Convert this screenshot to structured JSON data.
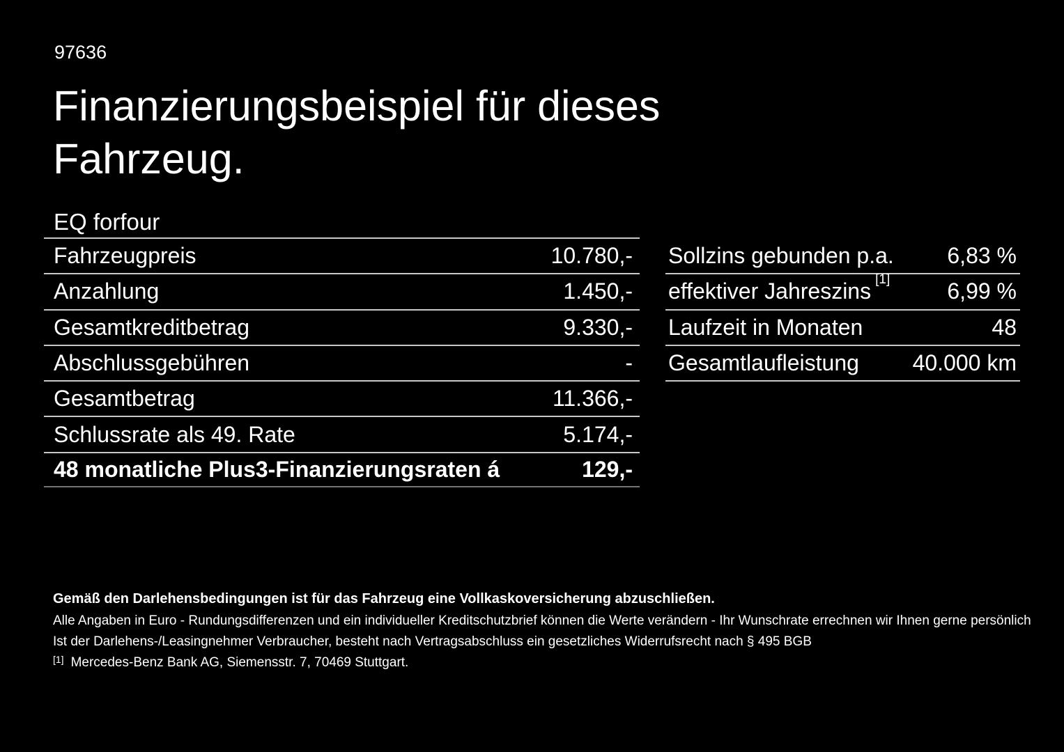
{
  "header": {
    "doc_id": "97636",
    "title_line1": "Finanzierungsbeispiel für dieses",
    "title_line2": "Fahrzeug.",
    "model": "EQ forfour"
  },
  "tables": {
    "left": {
      "rows": [
        {
          "label": "Fahrzeugpreis",
          "value": "10.780,-"
        },
        {
          "label": "Anzahlung",
          "value": "1.450,-"
        },
        {
          "label": "Gesamtkreditbetrag",
          "value": "9.330,-"
        },
        {
          "label": "Abschlussgebühren",
          "value": "-"
        },
        {
          "label": "Gesamtbetrag",
          "value": "11.366,-"
        },
        {
          "label": "Schlussrate als 49. Rate",
          "value": "5.174,-"
        },
        {
          "label": "48 monatliche Plus3-Finanzierungsraten á",
          "value": "129,-"
        }
      ]
    },
    "right": {
      "rows": [
        {
          "label": "Sollzins gebunden p.a.",
          "value": "6,83 %"
        },
        {
          "label": "effektiver Jahreszins",
          "sup": "[1]",
          "value": "6,99 %"
        },
        {
          "label": "Laufzeit in Monaten",
          "value": "48"
        },
        {
          "label": "Gesamtlaufleistung",
          "value": "40.000 km"
        }
      ]
    }
  },
  "footer": {
    "insurance_note": "Gemäß den Darlehensbedingungen ist für das Fahrzeug eine Vollkaskoversicherung abzuschließen.",
    "disclaimer_line1": "Alle Angaben in Euro - Rundungsdifferenzen und ein individueller Kreditschutzbrief können die Werte verändern - Ihr Wunschrate errechnen wir Ihnen gerne persönlich",
    "disclaimer_line2": "Ist der Darlehens-/Leasingnehmer Verbraucher, besteht nach Vertragsabschluss ein gesetzliches Widerrufsrecht nach § 495 BGB",
    "footnote_marker": "[1]",
    "footnote_text": "Mercedes-Benz Bank AG, Siemensstr. 7, 70469 Stuttgart."
  },
  "colors": {
    "background": "#000000",
    "text": "#ffffff",
    "divider": "#c9c9c9"
  }
}
